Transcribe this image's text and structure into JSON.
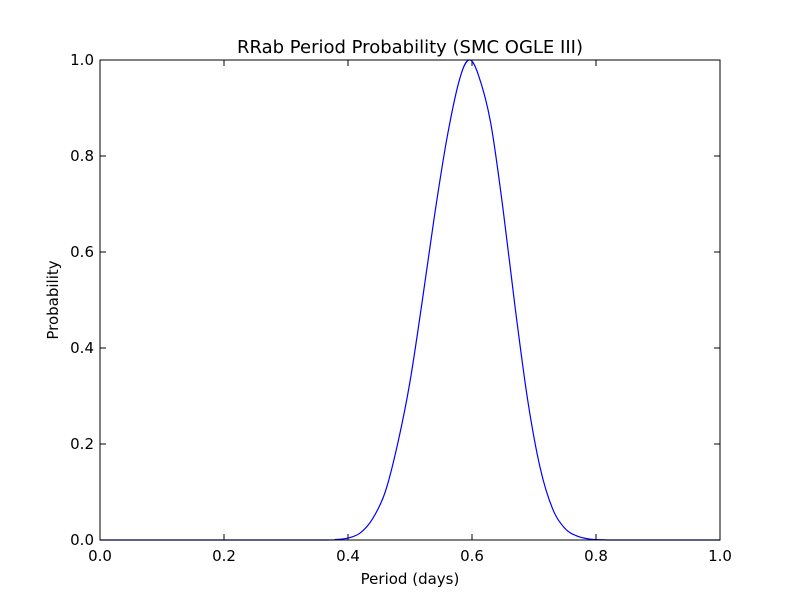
{
  "chart_data": {
    "type": "line",
    "title": "RRab Period Probability (SMC OGLE III)",
    "xlabel": "Period (days)",
    "ylabel": "Probability",
    "xlim": [
      0.0,
      1.0
    ],
    "ylim": [
      0.0,
      1.0
    ],
    "x_ticks": [
      "0.0",
      "0.2",
      "0.4",
      "0.6",
      "0.8",
      "1.0"
    ],
    "y_ticks": [
      "0.0",
      "0.2",
      "0.4",
      "0.6",
      "0.8",
      "1.0"
    ],
    "grid": false,
    "legend": "none",
    "series": [
      {
        "color": "#0000ff",
        "x": [
          0.0,
          0.35,
          0.38,
          0.4,
          0.42,
          0.44,
          0.46,
          0.48,
          0.5,
          0.52,
          0.54,
          0.56,
          0.58,
          0.595,
          0.61,
          0.63,
          0.65,
          0.67,
          0.69,
          0.71,
          0.73,
          0.75,
          0.77,
          0.79,
          0.81,
          0.84,
          1.0
        ],
        "y": [
          0.0,
          0.0,
          0.001,
          0.004,
          0.015,
          0.045,
          0.1,
          0.2,
          0.33,
          0.5,
          0.68,
          0.84,
          0.96,
          1.0,
          0.97,
          0.87,
          0.69,
          0.48,
          0.29,
          0.15,
          0.065,
          0.024,
          0.008,
          0.002,
          0.0005,
          0.0,
          0.0
        ]
      }
    ]
  }
}
